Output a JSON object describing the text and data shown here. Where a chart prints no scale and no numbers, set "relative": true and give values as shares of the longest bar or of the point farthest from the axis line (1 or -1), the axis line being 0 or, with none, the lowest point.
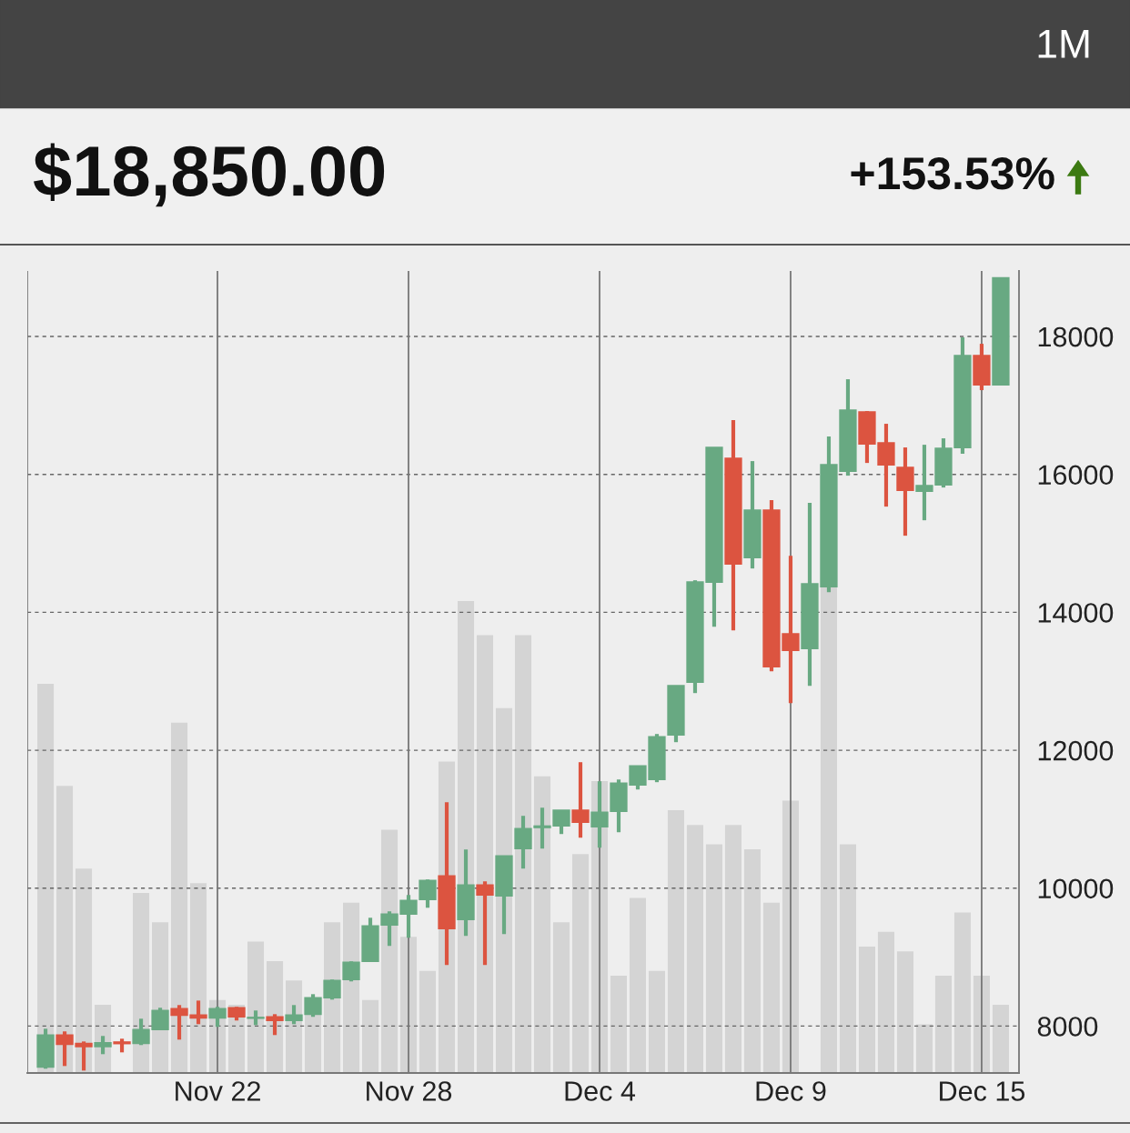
{
  "chart_data": [
    {
      "type": "candlestick",
      "title": "$18,850.00",
      "subtitle": "+153.53%",
      "annotations": [
        "1M"
      ],
      "categories": [
        null,
        null,
        null,
        null,
        null,
        null,
        null,
        null,
        null,
        "Nov 22",
        null,
        null,
        null,
        null,
        null,
        null,
        null,
        null,
        null,
        "Nov 28",
        null,
        null,
        null,
        null,
        null,
        null,
        null,
        null,
        null,
        "Dec 4",
        null,
        null,
        null,
        null,
        null,
        null,
        null,
        null,
        null,
        "Dec 9",
        null,
        null,
        null,
        null,
        null,
        null,
        null,
        null,
        null,
        "Dec 15",
        null
      ],
      "ylim": [
        7320,
        18950
      ],
      "yticks": [
        8000,
        10000,
        12000,
        14000,
        16000,
        18000
      ],
      "grid": true,
      "ohlc": [
        [
          7408,
          7962,
          7382,
          7870
        ],
        [
          7870,
          7923,
          7421,
          7738
        ],
        [
          7747,
          7777,
          7355,
          7703
        ],
        [
          7705,
          7857,
          7593,
          7758
        ],
        [
          7768,
          7817,
          7619,
          7747
        ],
        [
          7751,
          8107,
          7725,
          7950
        ],
        [
          7950,
          8266,
          7950,
          8226
        ],
        [
          8252,
          8305,
          7804,
          8160
        ],
        [
          8160,
          8370,
          8028,
          8120
        ],
        [
          8120,
          8279,
          7989,
          8252
        ],
        [
          8266,
          8279,
          8081,
          8134
        ],
        [
          8115,
          8226,
          8015,
          8125
        ],
        [
          8134,
          8173,
          7870,
          8081
        ],
        [
          8081,
          8305,
          8028,
          8160
        ],
        [
          8173,
          8463,
          8134,
          8411
        ],
        [
          8411,
          8675,
          8384,
          8662
        ],
        [
          8675,
          8939,
          8648,
          8925
        ],
        [
          8939,
          9571,
          8939,
          9453
        ],
        [
          9466,
          9664,
          9163,
          9624
        ],
        [
          9624,
          9901,
          9281,
          9822
        ],
        [
          9835,
          10126,
          9716,
          10112
        ],
        [
          10178,
          11247,
          8886,
          9413
        ],
        [
          9545,
          10561,
          9308,
          10046
        ],
        [
          10046,
          10099,
          8886,
          9901
        ],
        [
          9888,
          10468,
          9334,
          10468
        ],
        [
          10574,
          11049,
          10284,
          10864
        ],
        [
          10880,
          11167,
          10574,
          10900
        ],
        [
          10904,
          11128,
          10785,
          11128
        ],
        [
          11128,
          11827,
          10732,
          10956
        ],
        [
          10890,
          11550,
          10587,
          11101
        ],
        [
          11115,
          11576,
          10811,
          11523
        ],
        [
          11497,
          11774,
          11431,
          11774
        ],
        [
          11576,
          12236,
          11537,
          12196
        ],
        [
          12223,
          12935,
          12117,
          12935
        ],
        [
          12988,
          14465,
          12829,
          14438
        ],
        [
          14438,
          16391,
          13792,
          16391
        ],
        [
          16232,
          16786,
          13739,
          14702
        ],
        [
          14795,
          16193,
          14636,
          15480
        ],
        [
          15480,
          15626,
          13146,
          13212
        ],
        [
          13687,
          14821,
          12684,
          13449
        ],
        [
          13476,
          15586,
          12935,
          14412
        ],
        [
          14373,
          16549,
          14293,
          16140
        ],
        [
          16048,
          17380,
          15982,
          16931
        ],
        [
          16905,
          16918,
          16166,
          16443
        ],
        [
          16457,
          16734,
          15533,
          16140
        ],
        [
          16100,
          16391,
          15111,
          15771
        ],
        [
          15757,
          16430,
          15335,
          15837
        ],
        [
          15850,
          16523,
          15810,
          16377
        ],
        [
          16391,
          17987,
          16298,
          17723
        ],
        [
          17723,
          17894,
          17222,
          17301
        ],
        [
          17301,
          18850,
          17301,
          18850
        ]
      ],
      "colors": [
        "#68a982",
        "#dc5440",
        "#dc5440",
        "#68a982",
        "#dc5440",
        "#68a982",
        "#68a982",
        "#dc5440",
        "#dc5440",
        "#68a982",
        "#dc5440",
        "#68a982",
        "#dc5440",
        "#68a982",
        "#68a982",
        "#68a982",
        "#68a982",
        "#68a982",
        "#68a982",
        "#68a982",
        "#68a982",
        "#dc5440",
        "#68a982",
        "#dc5440",
        "#68a982",
        "#68a982",
        "#68a982",
        "#68a982",
        "#dc5440",
        "#68a982",
        "#68a982",
        "#68a982",
        "#68a982",
        "#68a982",
        "#68a982",
        "#68a982",
        "#dc5440",
        "#68a982",
        "#dc5440",
        "#dc5440",
        "#68a982",
        "#68a982",
        "#68a982",
        "#dc5440",
        "#dc5440",
        "#dc5440",
        "#68a982",
        "#68a982",
        "#68a982",
        "#dc5440",
        "#68a982"
      ],
      "tick_labels": true
    },
    {
      "type": "bar",
      "relative": true,
      "color": "#d4d4d4",
      "categories": [
        null,
        null,
        null,
        null,
        null,
        null,
        null,
        null,
        null,
        null,
        null,
        null,
        null,
        null,
        null,
        null,
        null,
        null,
        null,
        null,
        null,
        null,
        null,
        null,
        null,
        null,
        null,
        null,
        null,
        null,
        null,
        null,
        null,
        null,
        null,
        null,
        null,
        null,
        null,
        null,
        null,
        null,
        null,
        null,
        null,
        null,
        null,
        null,
        null,
        null,
        null
      ],
      "values": [
        0.8,
        0.59,
        0.42,
        0.14,
        0,
        0.37,
        0.31,
        0.72,
        0.39,
        0.15,
        0.14,
        0.27,
        0.23,
        0.19,
        0.12,
        0.31,
        0.35,
        0.15,
        0.5,
        0.28,
        0.21,
        0.64,
        0.97,
        0.9,
        0.75,
        0.9,
        0.61,
        0.31,
        0.45,
        0.6,
        0.2,
        0.36,
        0.21,
        0.54,
        0.51,
        0.47,
        0.51,
        0.46,
        0.35,
        0.56,
        null,
        1,
        0.47,
        0.26,
        0.29,
        0.25,
        0.1,
        0.2,
        0.33,
        0.2,
        0.14
      ],
      "tick_labels": false
    }
  ]
}
